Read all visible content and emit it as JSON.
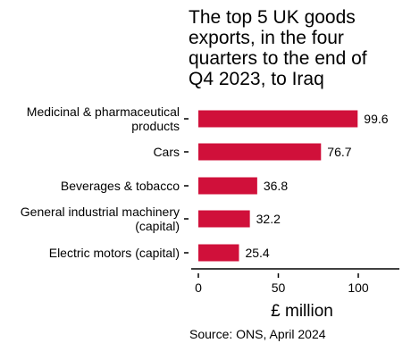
{
  "chart_data": {
    "type": "bar",
    "orientation": "horizontal",
    "title": "The top 5 UK goods exports, in the four quarters to the end of Q4 2023, to Iraq",
    "categories": [
      "Medicinal & pharmaceutical products",
      "Cars",
      "Beverages & tobacco",
      "General industrial machinery (capital)",
      "Electric motors (capital)"
    ],
    "category_label_lines": [
      [
        "Medicinal & pharmaceutical",
        "products"
      ],
      [
        "Cars"
      ],
      [
        "Beverages & tobacco"
      ],
      [
        "General industrial machinery",
        "(capital)"
      ],
      [
        "Electric motors (capital)"
      ]
    ],
    "values": [
      99.6,
      76.7,
      36.8,
      32.2,
      25.4
    ],
    "value_labels": [
      "99.6",
      "76.7",
      "36.8",
      "32.2",
      "25.4"
    ],
    "xlabel": "£ million",
    "ylabel": "",
    "xlim": [
      0,
      130
    ],
    "x_ticks": [
      0,
      50,
      100
    ],
    "x_tick_labels": [
      "0",
      "50",
      "100"
    ],
    "grid": false,
    "legend": "none",
    "bar_color": "#d0103a",
    "source": "Source: ONS, April 2024"
  }
}
